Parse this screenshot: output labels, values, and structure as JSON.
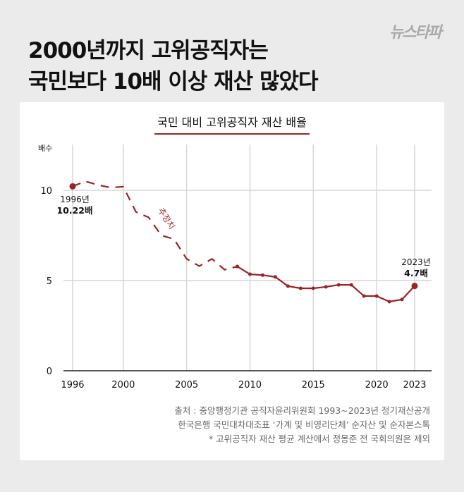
{
  "headline": [
    "2000년까지 고위공직자는",
    "국민보다 10배 이상 재산 많았다"
  ],
  "logo": "뉴스타파",
  "chart_data": {
    "type": "line",
    "title": "국민 대비 고위공직자 재산 배율",
    "ylabel": "배수",
    "ylim": [
      0,
      12
    ],
    "xlim": [
      1996,
      2023
    ],
    "xticks": [
      1996,
      2000,
      2005,
      2010,
      2015,
      2020,
      2023
    ],
    "yticks": [
      0,
      5,
      10
    ],
    "grid": true,
    "color": "#9b2226",
    "x": [
      1996,
      1997,
      1998,
      1999,
      2000,
      2001,
      2002,
      2003,
      2004,
      2005,
      2006,
      2007,
      2008,
      2009,
      2010,
      2011,
      2012,
      2013,
      2014,
      2015,
      2016,
      2017,
      2018,
      2019,
      2020,
      2021,
      2022,
      2023
    ],
    "values": [
      10.22,
      10.5,
      10.3,
      10.15,
      10.2,
      8.8,
      8.5,
      7.5,
      7.3,
      6.2,
      5.8,
      6.2,
      5.6,
      5.78,
      5.35,
      5.3,
      5.2,
      4.69,
      4.57,
      4.57,
      4.65,
      4.76,
      4.76,
      4.14,
      4.14,
      3.83,
      3.95,
      4.7
    ],
    "estimated_until": 2009,
    "estimated_label": "추정치",
    "annotations": [
      {
        "year_label": "1996년",
        "value_label": "10.22배"
      },
      {
        "year_label": "2023년",
        "value_label": "4.7배"
      }
    ]
  },
  "source": [
    "출처 : 중앙행정기관 공직자윤리위원회 1993~2023년 정기재산공개",
    "한국은행 국민대차대조표 ‘가계 및 비영리단체’ 순자산 및 순자본스톡",
    "* 고위공직자 재산 평균 계산에서 정몽준 전 국회의원은 제외"
  ]
}
